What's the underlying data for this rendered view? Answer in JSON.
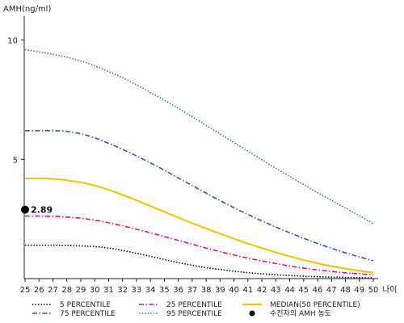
{
  "chart_data": {
    "type": "line",
    "ylabel": "AMH(ng/ml)",
    "xlabel": "나이",
    "xlim": [
      25,
      50
    ],
    "ylim": [
      0,
      11
    ],
    "x": [
      25,
      26,
      27,
      28,
      29,
      30,
      31,
      32,
      33,
      34,
      35,
      36,
      37,
      38,
      39,
      40,
      41,
      42,
      43,
      44,
      45,
      46,
      47,
      48,
      49,
      50
    ],
    "y_ticks": [
      5,
      10
    ],
    "series": [
      {
        "name": "5 PERCENTILE",
        "color": "#0a0a3a",
        "dash": "dotted",
        "values": [
          1.4,
          1.4,
          1.4,
          1.39,
          1.37,
          1.34,
          1.28,
          1.18,
          1.06,
          0.93,
          0.8,
          0.67,
          0.56,
          0.46,
          0.38,
          0.31,
          0.25,
          0.2,
          0.16,
          0.13,
          0.1,
          0.08,
          0.06,
          0.05,
          0.04,
          0.03
        ]
      },
      {
        "name": "25 PERCENTILE",
        "color": "#e0147e",
        "dash": "dashdot",
        "values": [
          2.62,
          2.62,
          2.61,
          2.58,
          2.53,
          2.45,
          2.34,
          2.21,
          2.07,
          1.92,
          1.76,
          1.6,
          1.44,
          1.28,
          1.13,
          0.99,
          0.86,
          0.74,
          0.63,
          0.53,
          0.44,
          0.36,
          0.3,
          0.24,
          0.2,
          0.16
        ]
      },
      {
        "name": "MEDIAN(50 PERCENTILE)",
        "color": "#f0c400",
        "dash": "solid",
        "values": [
          4.2,
          4.2,
          4.18,
          4.12,
          4.03,
          3.9,
          3.72,
          3.51,
          3.28,
          3.04,
          2.8,
          2.56,
          2.32,
          2.1,
          1.88,
          1.67,
          1.47,
          1.28,
          1.1,
          0.93,
          0.78,
          0.64,
          0.52,
          0.42,
          0.33,
          0.26
        ]
      },
      {
        "name": "75 PERCENTILE",
        "color": "#2e55c0",
        "dash": "dashdot",
        "values": [
          6.2,
          6.2,
          6.2,
          6.17,
          6.07,
          5.9,
          5.67,
          5.42,
          5.14,
          4.85,
          4.54,
          4.22,
          3.9,
          3.58,
          3.27,
          2.97,
          2.69,
          2.42,
          2.16,
          1.92,
          1.69,
          1.47,
          1.27,
          1.08,
          0.91,
          0.75
        ]
      },
      {
        "name": "95 PERCENTILE",
        "color": "#2e8a4e",
        "dash": "dotted",
        "values": [
          9.6,
          9.5,
          9.4,
          9.28,
          9.12,
          8.92,
          8.68,
          8.42,
          8.12,
          7.8,
          7.48,
          7.14,
          6.78,
          6.42,
          6.06,
          5.7,
          5.34,
          4.98,
          4.62,
          4.28,
          3.94,
          3.6,
          3.28,
          2.96,
          2.64,
          2.3
        ]
      }
    ],
    "highlight_point": {
      "x": 25,
      "y": 2.89,
      "label": "2.89",
      "legend": "수진자의 AMH 농도",
      "color": "#000000"
    }
  }
}
